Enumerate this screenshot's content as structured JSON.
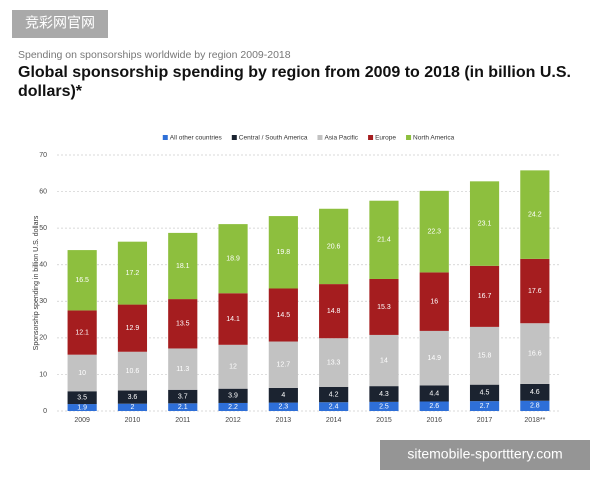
{
  "watermarks": [
    "竞彩网官网",
    "sitemobile-sportttery.com"
  ],
  "chart_data": {
    "type": "stacked_bar",
    "subtitle": "Spending on sponsorships worldwide by region 2009-2018",
    "title": "Global sponsorship spending by region from 2009 to 2018 (in billion U.S. dollars)*",
    "y_label": "Sponsorship spending in billion U.S. dollars",
    "categories": [
      "2009",
      "2010",
      "2011",
      "2012",
      "2013",
      "2014",
      "2015",
      "2016",
      "2017",
      "2018**"
    ],
    "series": [
      {
        "name": "All other countries",
        "color": "#2e6fd8",
        "values": [
          1.9,
          2,
          2.1,
          2.2,
          2.3,
          2.4,
          2.5,
          2.6,
          2.7,
          2.8
        ]
      },
      {
        "name": "Central / South America",
        "color": "#1b2330",
        "values": [
          3.5,
          3.6,
          3.7,
          3.9,
          4,
          4.2,
          4.3,
          4.4,
          4.5,
          4.6
        ]
      },
      {
        "name": "Asia Pacific",
        "color": "#c2c2c2",
        "values": [
          10,
          10.6,
          11.3,
          12,
          12.7,
          13.3,
          14,
          14.9,
          15.8,
          16.6
        ]
      },
      {
        "name": "Europe",
        "color": "#a51d1f",
        "values": [
          12.1,
          12.9,
          13.5,
          14.1,
          14.5,
          14.8,
          15.3,
          16,
          16.7,
          17.6
        ]
      },
      {
        "name": "North America",
        "color": "#8dbf3e",
        "values": [
          16.5,
          17.2,
          18.1,
          18.9,
          19.8,
          20.6,
          21.4,
          22.3,
          23.1,
          24.2
        ]
      }
    ],
    "ylim": [
      0,
      70
    ],
    "yticks": [
      0,
      10,
      20,
      30,
      40,
      50,
      60,
      70
    ],
    "grid": true,
    "legend": "top"
  }
}
